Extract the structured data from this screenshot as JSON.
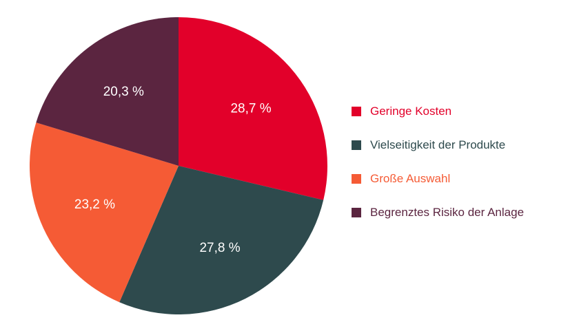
{
  "chart_data": {
    "type": "pie",
    "title": "",
    "categories": [
      "Geringe Kosten",
      "Vielseitigkeit der Produkte",
      "Große Auswahl",
      "Begrenztes Risiko der Anlage"
    ],
    "values": [
      28.7,
      27.8,
      23.2,
      20.3
    ],
    "labels": [
      "28,7 %",
      "27,8 %",
      "23,2 %",
      "20,3 %"
    ],
    "colors": [
      "#e2002a",
      "#2e4a4d",
      "#f55b35",
      "#5b2540"
    ],
    "label_color": "#ffffff",
    "legend_position": "right"
  },
  "legend": {
    "items": [
      {
        "label": "Geringe Kosten",
        "color": "#e2002a"
      },
      {
        "label": "Vielseitigkeit der Produkte",
        "color": "#2e4a4d"
      },
      {
        "label": "Große Auswahl",
        "color": "#f55b35"
      },
      {
        "label": "Begrenztes Risiko der Anlage",
        "color": "#5b2540"
      }
    ]
  }
}
